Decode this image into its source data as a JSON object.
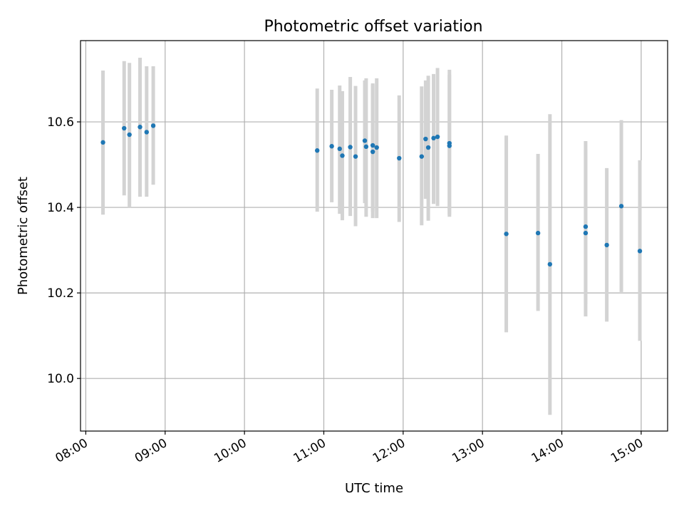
{
  "chart_data": {
    "type": "scatter",
    "title": "Photometric offset variation",
    "xlabel": "UTC time",
    "ylabel": "Photometric offset",
    "xlim": [
      "07:56",
      "15:20"
    ],
    "ylim": [
      9.877,
      10.79
    ],
    "x_ticks": [
      "08:00",
      "09:00",
      "10:00",
      "11:00",
      "12:00",
      "13:00",
      "14:00",
      "15:00"
    ],
    "y_ticks": [
      10.0,
      10.2,
      10.4,
      10.6
    ],
    "grid": true,
    "point_color": "#1f77b4",
    "errorbar_color": "#d3d3d3",
    "points": [
      {
        "x": "08:13",
        "y": 10.552,
        "ylow": 10.383,
        "yhigh": 10.72
      },
      {
        "x": "08:29",
        "y": 10.585,
        "ylow": 10.428,
        "yhigh": 10.742
      },
      {
        "x": "08:33",
        "y": 10.57,
        "ylow": 10.4,
        "yhigh": 10.738
      },
      {
        "x": "08:41",
        "y": 10.588,
        "ylow": 10.425,
        "yhigh": 10.75
      },
      {
        "x": "08:46",
        "y": 10.576,
        "ylow": 10.425,
        "yhigh": 10.73
      },
      {
        "x": "08:51",
        "y": 10.591,
        "ylow": 10.453,
        "yhigh": 10.73
      },
      {
        "x": "10:55",
        "y": 10.533,
        "ylow": 10.39,
        "yhigh": 10.678
      },
      {
        "x": "11:06",
        "y": 10.543,
        "ylow": 10.412,
        "yhigh": 10.675
      },
      {
        "x": "11:12",
        "y": 10.537,
        "ylow": 10.385,
        "yhigh": 10.685
      },
      {
        "x": "11:14",
        "y": 10.521,
        "ylow": 10.37,
        "yhigh": 10.672
      },
      {
        "x": "11:20",
        "y": 10.541,
        "ylow": 10.38,
        "yhigh": 10.705
      },
      {
        "x": "11:24",
        "y": 10.519,
        "ylow": 10.356,
        "yhigh": 10.684
      },
      {
        "x": "11:31",
        "y": 10.556,
        "ylow": 10.41,
        "yhigh": 10.697
      },
      {
        "x": "11:32",
        "y": 10.542,
        "ylow": 10.378,
        "yhigh": 10.702
      },
      {
        "x": "11:37",
        "y": 10.545,
        "ylow": 10.39,
        "yhigh": 10.687
      },
      {
        "x": "11:37",
        "y": 10.53,
        "ylow": 10.375,
        "yhigh": 10.69
      },
      {
        "x": "11:40",
        "y": 10.54,
        "ylow": 10.375,
        "yhigh": 10.702
      },
      {
        "x": "11:57",
        "y": 10.515,
        "ylow": 10.366,
        "yhigh": 10.662
      },
      {
        "x": "12:14",
        "y": 10.519,
        "ylow": 10.358,
        "yhigh": 10.683
      },
      {
        "x": "12:17",
        "y": 10.56,
        "ylow": 10.42,
        "yhigh": 10.697
      },
      {
        "x": "12:19",
        "y": 10.54,
        "ylow": 10.369,
        "yhigh": 10.708
      },
      {
        "x": "12:23",
        "y": 10.562,
        "ylow": 10.408,
        "yhigh": 10.712
      },
      {
        "x": "12:26",
        "y": 10.565,
        "ylow": 10.403,
        "yhigh": 10.726
      },
      {
        "x": "12:35",
        "y": 10.55,
        "ylow": 10.383,
        "yhigh": 10.722
      },
      {
        "x": "12:35",
        "y": 10.544,
        "ylow": 10.378,
        "yhigh": 10.71
      },
      {
        "x": "13:18",
        "y": 10.338,
        "ylow": 10.108,
        "yhigh": 10.568
      },
      {
        "x": "13:42",
        "y": 10.34,
        "ylow": 10.158,
        "yhigh": 10.525
      },
      {
        "x": "13:51",
        "y": 10.267,
        "ylow": 9.915,
        "yhigh": 10.618
      },
      {
        "x": "14:18",
        "y": 10.355,
        "ylow": 10.175,
        "yhigh": 10.555
      },
      {
        "x": "14:18",
        "y": 10.34,
        "ylow": 10.145,
        "yhigh": 10.535
      },
      {
        "x": "14:34",
        "y": 10.312,
        "ylow": 10.133,
        "yhigh": 10.492
      },
      {
        "x": "14:45",
        "y": 10.403,
        "ylow": 10.202,
        "yhigh": 10.604
      },
      {
        "x": "14:59",
        "y": 10.298,
        "ylow": 10.088,
        "yhigh": 10.51
      }
    ]
  }
}
